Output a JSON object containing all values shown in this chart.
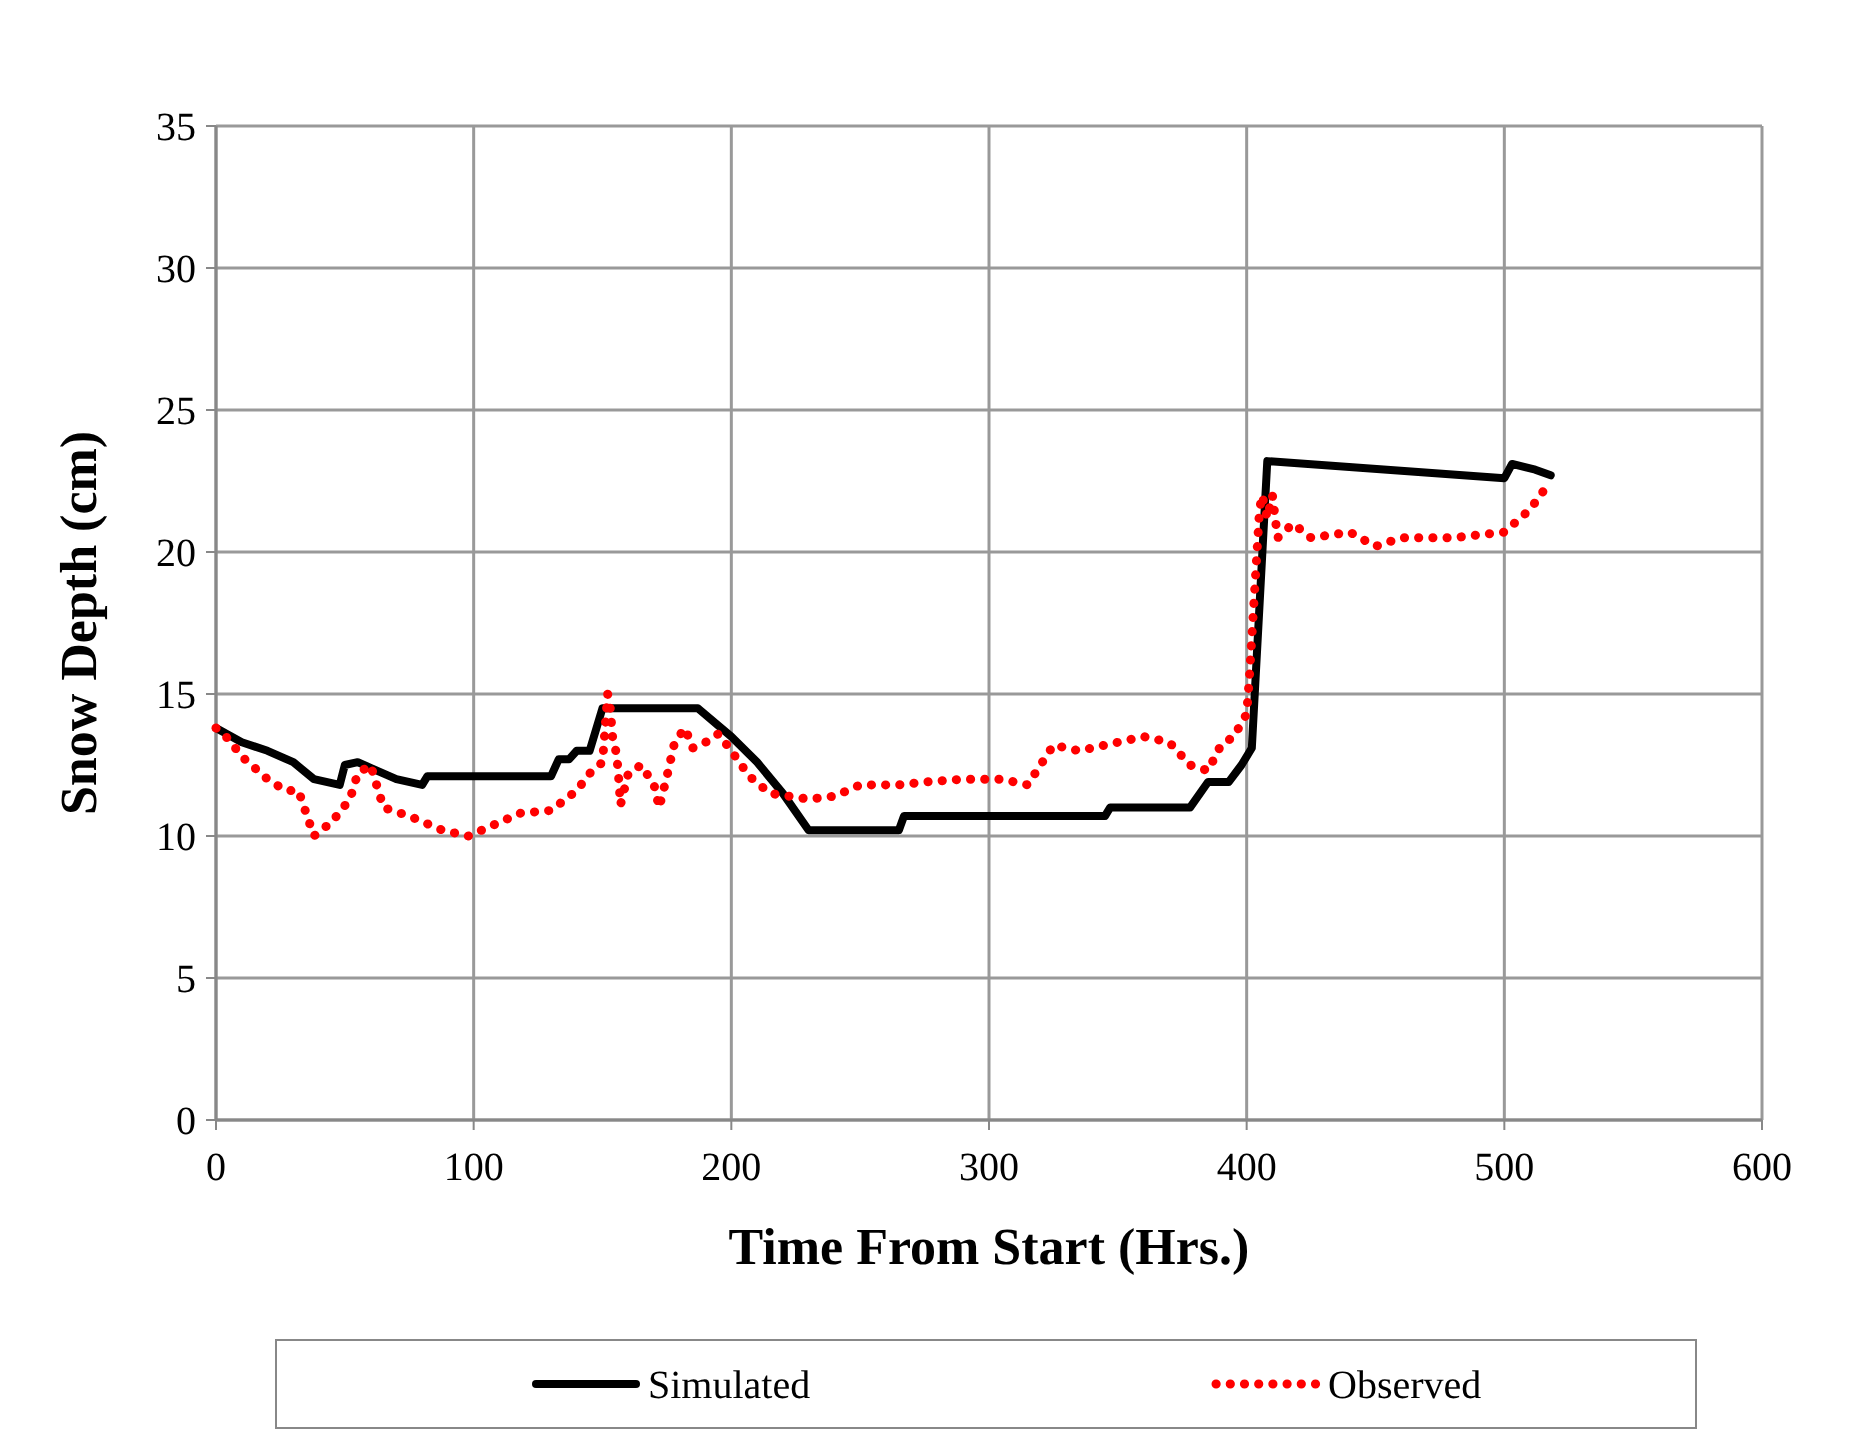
{
  "chart_data": {
    "type": "line",
    "xlabel": "Time From Start (Hrs.)",
    "ylabel": "Snow Depth (cm)",
    "xlim": [
      0,
      600
    ],
    "xticks": [
      0,
      100,
      200,
      300,
      400,
      500,
      600
    ],
    "ylim": [
      0,
      35
    ],
    "yticks": [
      0,
      5,
      10,
      15,
      20,
      25,
      30,
      35
    ],
    "grid": true,
    "legend": "bottom",
    "series": [
      {
        "name": "Simulated",
        "color": "#000000",
        "line_style": "solid",
        "x": [
          0,
          10,
          20,
          30,
          38,
          48,
          50,
          55,
          60,
          70,
          80,
          82,
          130,
          133,
          137,
          140,
          145,
          150,
          187,
          200,
          210,
          220,
          230,
          265,
          267,
          345,
          347,
          378,
          385,
          393,
          398,
          402,
          408,
          500,
          503,
          512,
          518
        ],
        "values": [
          13.8,
          13.3,
          13,
          12.6,
          12,
          11.8,
          12.5,
          12.6,
          12.4,
          12,
          11.8,
          12.1,
          12.1,
          12.7,
          12.7,
          13,
          13,
          14.5,
          14.5,
          13.5,
          12.6,
          11.5,
          10.2,
          10.2,
          10.7,
          10.7,
          11,
          11,
          11.9,
          11.9,
          12.5,
          13.1,
          23.2,
          22.6,
          23.1,
          22.9,
          22.7
        ]
      },
      {
        "name": "Observed",
        "color": "#ff0000",
        "line_style": "dotted",
        "x": [
          0,
          5,
          10,
          20,
          27,
          32,
          38,
          45,
          52,
          55,
          60,
          65,
          75,
          88,
          98,
          108,
          118,
          130,
          140,
          145,
          150,
          152,
          153,
          154,
          155,
          156,
          157,
          160,
          165,
          170,
          172,
          175,
          178,
          182,
          185,
          190,
          195,
          200,
          207,
          215,
          230,
          240,
          250,
          265,
          275,
          290,
          305,
          315,
          320,
          325,
          335,
          345,
          360,
          370,
          378,
          385,
          390,
          395,
          400,
          401,
          402,
          403,
          404,
          405,
          406,
          408,
          410,
          412,
          418,
          425,
          440,
          450,
          460,
          480,
          500,
          510,
          518
        ],
        "values": [
          13.8,
          13.4,
          12.8,
          12,
          11.6,
          11.6,
          10,
          10.5,
          11.3,
          12.2,
          12.5,
          11,
          10.7,
          10.2,
          10,
          10.4,
          10.8,
          10.9,
          11.6,
          12.2,
          12.6,
          15,
          14.5,
          13.4,
          13.1,
          12.4,
          11.1,
          12.2,
          12.5,
          11.8,
          11,
          12.1,
          13.3,
          13.8,
          13.1,
          13.3,
          13.6,
          13,
          12.1,
          11.5,
          11.3,
          11.4,
          11.8,
          11.8,
          11.9,
          12,
          12,
          11.8,
          12.5,
          13.2,
          13,
          13.2,
          13.5,
          13.3,
          12.5,
          12.3,
          13.2,
          13.5,
          14.3,
          15.5,
          17,
          18.5,
          20,
          21.5,
          22,
          21.2,
          22,
          20.5,
          21,
          20.5,
          20.7,
          20.2,
          20.5,
          20.5,
          20.7,
          21.5,
          22.5
        ]
      }
    ]
  }
}
